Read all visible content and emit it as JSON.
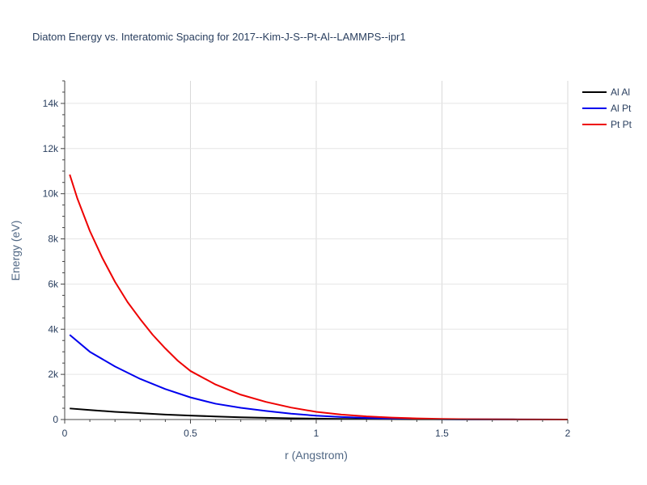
{
  "chart_data": {
    "type": "line",
    "title": "Diatom Energy vs. Interatomic Spacing for 2017--Kim-J-S--Pt-Al--LAMMPS--ipr1",
    "xlabel": "r (Angstrom)",
    "ylabel": "Energy (eV)",
    "xlim": [
      0,
      2
    ],
    "ylim": [
      0,
      15000
    ],
    "x_ticks": [
      {
        "value": 0,
        "label": "0"
      },
      {
        "value": 0.5,
        "label": "0.5"
      },
      {
        "value": 1,
        "label": "1"
      },
      {
        "value": 1.5,
        "label": "1.5"
      },
      {
        "value": 2,
        "label": "2"
      }
    ],
    "y_ticks": [
      {
        "value": 0,
        "label": "0"
      },
      {
        "value": 2000,
        "label": "2k"
      },
      {
        "value": 4000,
        "label": "4k"
      },
      {
        "value": 6000,
        "label": "6k"
      },
      {
        "value": 8000,
        "label": "8k"
      },
      {
        "value": 10000,
        "label": "10k"
      },
      {
        "value": 12000,
        "label": "12k"
      },
      {
        "value": 14000,
        "label": "14k"
      }
    ],
    "grid": true,
    "legend_position": "top-right",
    "series": [
      {
        "name": "Al Al",
        "color": "#000000",
        "x": [
          0.02,
          0.1,
          0.2,
          0.3,
          0.4,
          0.5,
          0.6,
          0.7,
          0.8,
          0.9,
          1.0,
          1.1,
          1.2,
          1.3,
          1.4,
          1.5,
          1.6,
          1.8,
          2.0
        ],
        "y": [
          490,
          420,
          340,
          280,
          220,
          175,
          135,
          100,
          75,
          55,
          40,
          28,
          20,
          14,
          10,
          7,
          5,
          2,
          1
        ]
      },
      {
        "name": "Al Pt",
        "color": "#0000ee",
        "x": [
          0.02,
          0.1,
          0.2,
          0.3,
          0.4,
          0.5,
          0.6,
          0.7,
          0.8,
          0.9,
          1.0,
          1.1,
          1.2,
          1.3,
          1.4,
          1.5,
          1.6,
          1.8,
          2.0
        ],
        "y": [
          3750,
          3000,
          2350,
          1800,
          1350,
          980,
          700,
          520,
          380,
          260,
          170,
          110,
          70,
          45,
          28,
          15,
          8,
          3,
          1
        ]
      },
      {
        "name": "Pt Pt",
        "color": "#ee0000",
        "x": [
          0.02,
          0.05,
          0.1,
          0.15,
          0.2,
          0.25,
          0.3,
          0.35,
          0.4,
          0.45,
          0.5,
          0.6,
          0.7,
          0.8,
          0.9,
          1.0,
          1.1,
          1.2,
          1.3,
          1.4,
          1.5,
          1.6,
          1.8,
          2.0
        ],
        "y": [
          10850,
          9800,
          8350,
          7150,
          6100,
          5200,
          4450,
          3750,
          3150,
          2600,
          2150,
          1550,
          1100,
          780,
          530,
          340,
          220,
          140,
          85,
          50,
          25,
          12,
          4,
          1
        ]
      }
    ]
  }
}
